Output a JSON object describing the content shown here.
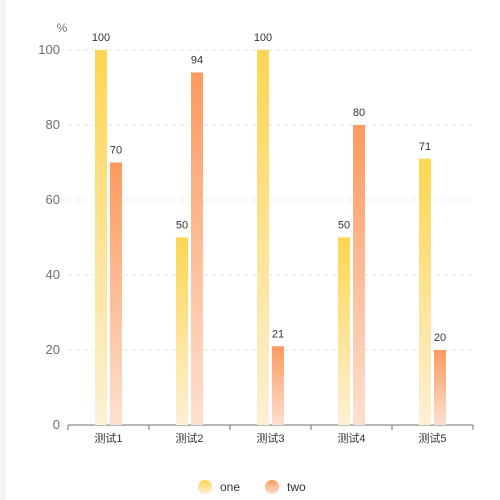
{
  "chart_data": {
    "type": "bar",
    "ylabel": "%",
    "ylim": [
      0,
      100
    ],
    "yticks": [
      0,
      20,
      40,
      60,
      80,
      100
    ],
    "grid": true,
    "legend_position": "bottom",
    "categories": [
      "测试1",
      "测试2",
      "测试3",
      "测试4",
      "测试5"
    ],
    "series": [
      {
        "name": "one",
        "values": [
          100,
          50,
          100,
          50,
          71
        ],
        "color_top": "#fdd651",
        "color_bottom": "#fdf0d5"
      },
      {
        "name": "two",
        "values": [
          70,
          94,
          21,
          80,
          20
        ],
        "color_top": "#fd9a5f",
        "color_bottom": "#fde0d0"
      }
    ]
  }
}
